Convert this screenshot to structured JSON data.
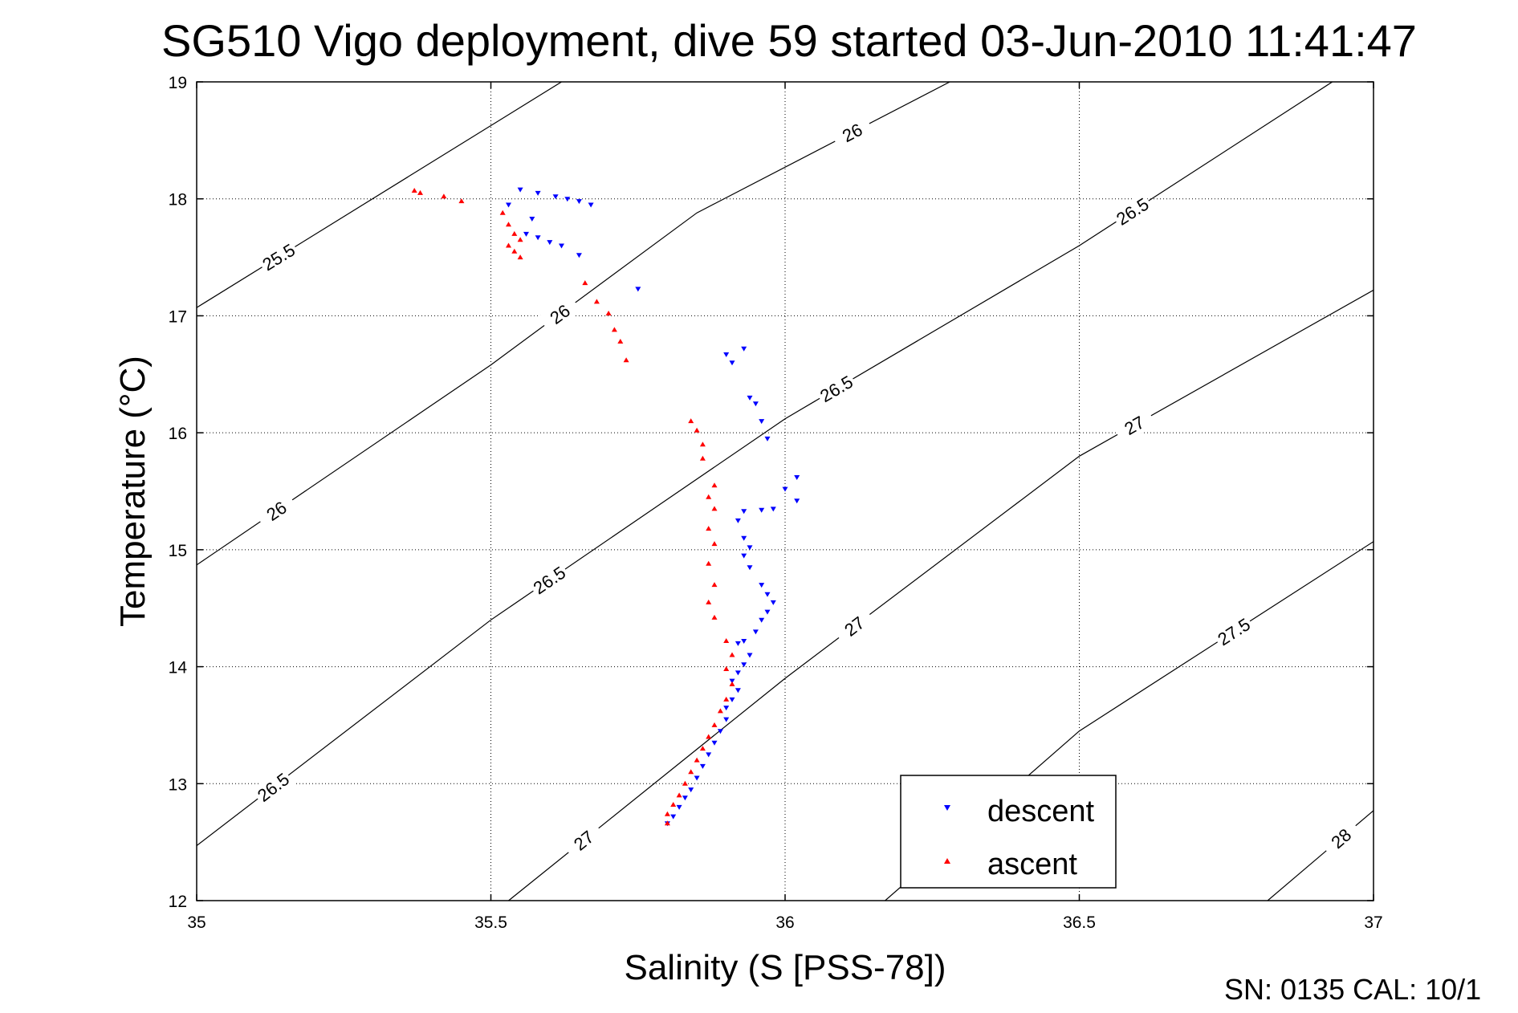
{
  "chart_data": {
    "type": "scatter",
    "title": "SG510 Vigo deployment, dive 59 started 03-Jun-2010 11:41:47",
    "xlabel": "Salinity (S [PSS-78])",
    "ylabel": "Temperature (°C)",
    "xlim": [
      35,
      37
    ],
    "ylim": [
      12,
      19
    ],
    "xticks": [
      "35",
      "35.5",
      "36",
      "36.5",
      "37"
    ],
    "yticks": [
      "12",
      "13",
      "14",
      "15",
      "16",
      "17",
      "18",
      "19"
    ],
    "grid": true,
    "legend_position": "bottom-right",
    "density_contours": [
      {
        "value": 25.5,
        "label": "25.5",
        "points": [
          [
            35.0,
            17.07
          ],
          [
            35.62,
            19.0
          ]
        ]
      },
      {
        "value": 26,
        "label": "26",
        "points": [
          [
            35.0,
            14.87
          ],
          [
            35.5,
            16.58
          ],
          [
            35.85,
            17.88
          ],
          [
            36.28,
            19.0
          ]
        ]
      },
      {
        "value": 26.5,
        "label": "26.5",
        "points": [
          [
            35.0,
            12.47
          ],
          [
            35.5,
            14.4
          ],
          [
            36.0,
            16.12
          ],
          [
            36.5,
            17.6
          ],
          [
            36.93,
            19.0
          ]
        ]
      },
      {
        "value": 27,
        "label": "27",
        "points": [
          [
            35.53,
            12.0
          ],
          [
            36.0,
            13.9
          ],
          [
            36.5,
            15.8
          ],
          [
            37.0,
            17.22
          ]
        ]
      },
      {
        "value": 27.5,
        "label": "27.5",
        "points": [
          [
            36.17,
            12.0
          ],
          [
            36.5,
            13.45
          ],
          [
            37.0,
            15.07
          ]
        ]
      },
      {
        "value": 28,
        "label": "28",
        "points": [
          [
            36.82,
            12.0
          ],
          [
            37.0,
            12.77
          ]
        ]
      }
    ],
    "series": [
      {
        "name": "descent",
        "color": "#0000ff",
        "marker": "triangle-down",
        "points": [
          [
            35.55,
            18.08
          ],
          [
            35.58,
            18.05
          ],
          [
            35.53,
            17.95
          ],
          [
            35.61,
            18.02
          ],
          [
            35.63,
            18.0
          ],
          [
            35.65,
            17.98
          ],
          [
            35.67,
            17.95
          ],
          [
            35.57,
            17.83
          ],
          [
            35.56,
            17.7
          ],
          [
            35.58,
            17.67
          ],
          [
            35.6,
            17.63
          ],
          [
            35.62,
            17.6
          ],
          [
            35.65,
            17.52
          ],
          [
            35.75,
            17.23
          ],
          [
            35.9,
            16.67
          ],
          [
            35.93,
            16.72
          ],
          [
            35.91,
            16.6
          ],
          [
            35.94,
            16.3
          ],
          [
            35.95,
            16.25
          ],
          [
            35.96,
            16.1
          ],
          [
            35.97,
            15.95
          ],
          [
            36.02,
            15.62
          ],
          [
            36.0,
            15.52
          ],
          [
            36.02,
            15.42
          ],
          [
            35.98,
            15.35
          ],
          [
            35.96,
            15.34
          ],
          [
            35.93,
            15.33
          ],
          [
            35.92,
            15.25
          ],
          [
            35.93,
            15.1
          ],
          [
            35.94,
            15.02
          ],
          [
            35.93,
            14.95
          ],
          [
            35.94,
            14.85
          ],
          [
            35.96,
            14.7
          ],
          [
            35.97,
            14.62
          ],
          [
            35.98,
            14.55
          ],
          [
            35.97,
            14.47
          ],
          [
            35.96,
            14.4
          ],
          [
            35.95,
            14.3
          ],
          [
            35.93,
            14.22
          ],
          [
            35.92,
            14.2
          ],
          [
            35.94,
            14.1
          ],
          [
            35.93,
            14.02
          ],
          [
            35.92,
            13.95
          ],
          [
            35.91,
            13.88
          ],
          [
            35.92,
            13.8
          ],
          [
            35.91,
            13.72
          ],
          [
            35.9,
            13.65
          ],
          [
            35.9,
            13.55
          ],
          [
            35.89,
            13.45
          ],
          [
            35.88,
            13.35
          ],
          [
            35.87,
            13.25
          ],
          [
            35.86,
            13.15
          ],
          [
            35.85,
            13.05
          ],
          [
            35.84,
            12.95
          ],
          [
            35.83,
            12.88
          ],
          [
            35.82,
            12.8
          ],
          [
            35.81,
            12.72
          ],
          [
            35.8,
            12.66
          ]
        ]
      },
      {
        "name": "ascent",
        "color": "#ff0000",
        "marker": "triangle-up",
        "points": [
          [
            35.37,
            18.07
          ],
          [
            35.38,
            18.05
          ],
          [
            35.42,
            18.02
          ],
          [
            35.45,
            17.98
          ],
          [
            35.52,
            17.88
          ],
          [
            35.53,
            17.78
          ],
          [
            35.54,
            17.7
          ],
          [
            35.55,
            17.65
          ],
          [
            35.53,
            17.6
          ],
          [
            35.54,
            17.55
          ],
          [
            35.55,
            17.5
          ],
          [
            35.66,
            17.28
          ],
          [
            35.68,
            17.12
          ],
          [
            35.7,
            17.02
          ],
          [
            35.71,
            16.88
          ],
          [
            35.72,
            16.78
          ],
          [
            35.73,
            16.62
          ],
          [
            35.84,
            16.1
          ],
          [
            35.85,
            16.02
          ],
          [
            35.86,
            15.9
          ],
          [
            35.86,
            15.78
          ],
          [
            35.88,
            15.55
          ],
          [
            35.87,
            15.45
          ],
          [
            35.88,
            15.35
          ],
          [
            35.87,
            15.18
          ],
          [
            35.88,
            15.05
          ],
          [
            35.87,
            14.88
          ],
          [
            35.88,
            14.7
          ],
          [
            35.87,
            14.55
          ],
          [
            35.88,
            14.42
          ],
          [
            35.9,
            14.22
          ],
          [
            35.91,
            14.1
          ],
          [
            35.9,
            13.98
          ],
          [
            35.91,
            13.85
          ],
          [
            35.9,
            13.72
          ],
          [
            35.89,
            13.62
          ],
          [
            35.88,
            13.5
          ],
          [
            35.87,
            13.4
          ],
          [
            35.86,
            13.3
          ],
          [
            35.85,
            13.2
          ],
          [
            35.84,
            13.1
          ],
          [
            35.83,
            13.0
          ],
          [
            35.82,
            12.9
          ],
          [
            35.81,
            12.82
          ],
          [
            35.8,
            12.74
          ],
          [
            35.8,
            12.66
          ]
        ]
      }
    ]
  },
  "footer": {
    "text": "SN: 0135  CAL: 10/1"
  }
}
